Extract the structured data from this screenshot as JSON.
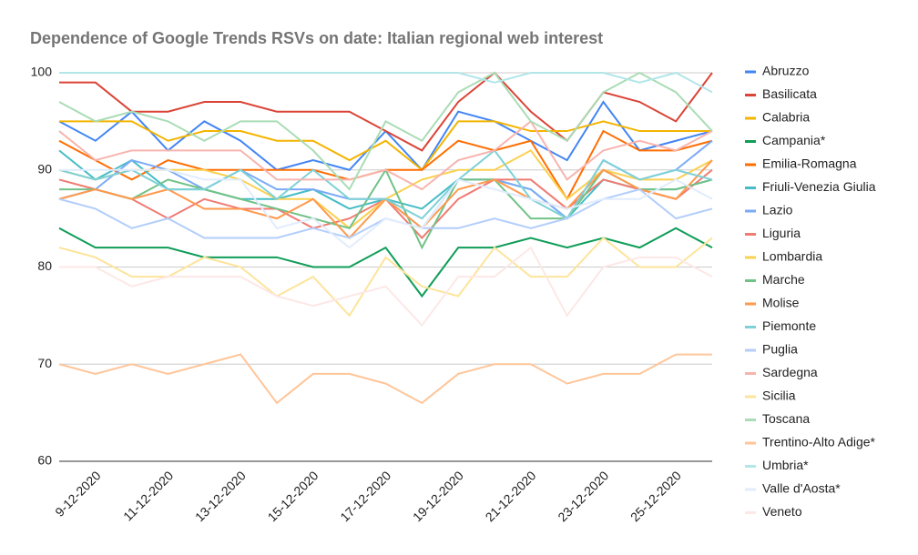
{
  "chart_data": {
    "type": "line",
    "title": "Dependence of Google Trends RSVs on date: Italian regional web interest",
    "categories": [
      null,
      "9-12-2020",
      null,
      "11-12-2020",
      null,
      "13-12-2020",
      null,
      "15-12-2020",
      null,
      "17-12-2020",
      null,
      "19-12-2020",
      null,
      "21-12-2020",
      null,
      "23-12-2020",
      null,
      "25-12-2020",
      null
    ],
    "ylim": [
      60,
      100
    ],
    "yticks": [
      60,
      70,
      80,
      90,
      100
    ],
    "grid": true,
    "legend": "right",
    "series": [
      {
        "name": "Abruzzo",
        "color": "#4285f4",
        "values": [
          95,
          93,
          96,
          92,
          95,
          93,
          90,
          91,
          90,
          94,
          90,
          96,
          95,
          93,
          91,
          97,
          92,
          93,
          94
        ]
      },
      {
        "name": "Basilicata",
        "color": "#db4437",
        "values": [
          99,
          99,
          96,
          96,
          97,
          97,
          96,
          96,
          96,
          94,
          92,
          97,
          100,
          96,
          93,
          98,
          97,
          95,
          100
        ]
      },
      {
        "name": "Calabria",
        "color": "#f4b400",
        "values": [
          95,
          95,
          95,
          93,
          94,
          94,
          93,
          93,
          91,
          93,
          90,
          95,
          95,
          94,
          94,
          95,
          94,
          94,
          94
        ]
      },
      {
        "name": "Campania*",
        "color": "#0f9d58",
        "values": [
          84,
          82,
          82,
          82,
          81,
          81,
          81,
          80,
          80,
          82,
          77,
          82,
          82,
          83,
          82,
          83,
          82,
          84,
          82
        ]
      },
      {
        "name": "Emilia-Romagna",
        "color": "#ff6d01",
        "values": [
          93,
          91,
          89,
          91,
          90,
          90,
          90,
          90,
          89,
          90,
          90,
          93,
          92,
          93,
          87,
          94,
          92,
          92,
          93
        ]
      },
      {
        "name": "Friuli-Venezia Giulia",
        "color": "#46bdc6",
        "values": [
          92,
          89,
          91,
          88,
          88,
          87,
          87,
          88,
          86,
          87,
          86,
          89,
          89,
          88,
          85,
          89,
          88,
          88,
          89
        ]
      },
      {
        "name": "Lazio",
        "color": "#7baaf7",
        "values": [
          87,
          88,
          91,
          90,
          88,
          90,
          88,
          88,
          87,
          87,
          84,
          89,
          89,
          88,
          85,
          91,
          89,
          90,
          93
        ]
      },
      {
        "name": "Liguria",
        "color": "#f07b72",
        "values": [
          89,
          88,
          87,
          85,
          87,
          86,
          86,
          84,
          85,
          87,
          83,
          87,
          89,
          89,
          86,
          89,
          88,
          87,
          90
        ]
      },
      {
        "name": "Lombardia",
        "color": "#fcd04f",
        "values": [
          90,
          89,
          90,
          90,
          90,
          89,
          87,
          87,
          84,
          87,
          89,
          90,
          90,
          92,
          87,
          90,
          89,
          89,
          91
        ]
      },
      {
        "name": "Marche",
        "color": "#71c287",
        "values": [
          88,
          88,
          87,
          89,
          88,
          87,
          86,
          85,
          84,
          90,
          82,
          89,
          89,
          85,
          85,
          90,
          88,
          88,
          89
        ]
      },
      {
        "name": "Molise",
        "color": "#ff994d",
        "values": [
          87,
          88,
          87,
          88,
          86,
          86,
          85,
          87,
          83,
          87,
          84,
          88,
          89,
          87,
          86,
          90,
          88,
          87,
          91
        ]
      },
      {
        "name": "Piemonte",
        "color": "#7ed1d7",
        "values": [
          90,
          89,
          90,
          88,
          88,
          90,
          87,
          90,
          87,
          87,
          85,
          89,
          92,
          87,
          85,
          91,
          89,
          90,
          89
        ]
      },
      {
        "name": "Puglia",
        "color": "#b3cefb",
        "values": [
          87,
          86,
          84,
          85,
          83,
          83,
          83,
          84,
          83,
          85,
          84,
          84,
          85,
          84,
          85,
          87,
          88,
          85,
          86
        ]
      },
      {
        "name": "Sardegna",
        "color": "#f7b4ae",
        "values": [
          94,
          91,
          92,
          92,
          92,
          92,
          89,
          89,
          89,
          90,
          88,
          91,
          92,
          95,
          89,
          92,
          93,
          92,
          94
        ]
      },
      {
        "name": "Sicilia",
        "color": "#fde49b",
        "values": [
          82,
          81,
          79,
          79,
          81,
          80,
          77,
          79,
          75,
          81,
          78,
          77,
          82,
          79,
          79,
          83,
          80,
          80,
          83
        ]
      },
      {
        "name": "Toscana",
        "color": "#aadcb5",
        "values": [
          97,
          95,
          96,
          95,
          93,
          95,
          95,
          92,
          88,
          95,
          93,
          98,
          100,
          95,
          93,
          98,
          100,
          98,
          94
        ]
      },
      {
        "name": "Trentino-Alto Adige*",
        "color": "#ffc599",
        "values": [
          70,
          69,
          70,
          69,
          70,
          71,
          66,
          69,
          69,
          68,
          66,
          69,
          70,
          70,
          68,
          69,
          69,
          71,
          71
        ]
      },
      {
        "name": "Umbria*",
        "color": "#b2e6e9",
        "values": [
          100,
          100,
          100,
          100,
          100,
          100,
          100,
          100,
          100,
          100,
          100,
          100,
          99,
          100,
          100,
          100,
          99,
          100,
          98
        ]
      },
      {
        "name": "Valle d'Aosta*",
        "color": "#e1ecfd",
        "values": [
          90,
          90,
          90,
          90,
          89,
          89,
          84,
          85,
          82,
          85,
          84,
          89,
          88,
          87,
          86,
          87,
          87,
          89,
          87
        ]
      },
      {
        "name": "Veneto",
        "color": "#fce8e6",
        "values": [
          80,
          80,
          78,
          79,
          79,
          79,
          77,
          76,
          77,
          78,
          74,
          79,
          79,
          82,
          75,
          80,
          81,
          81,
          79
        ]
      }
    ]
  }
}
